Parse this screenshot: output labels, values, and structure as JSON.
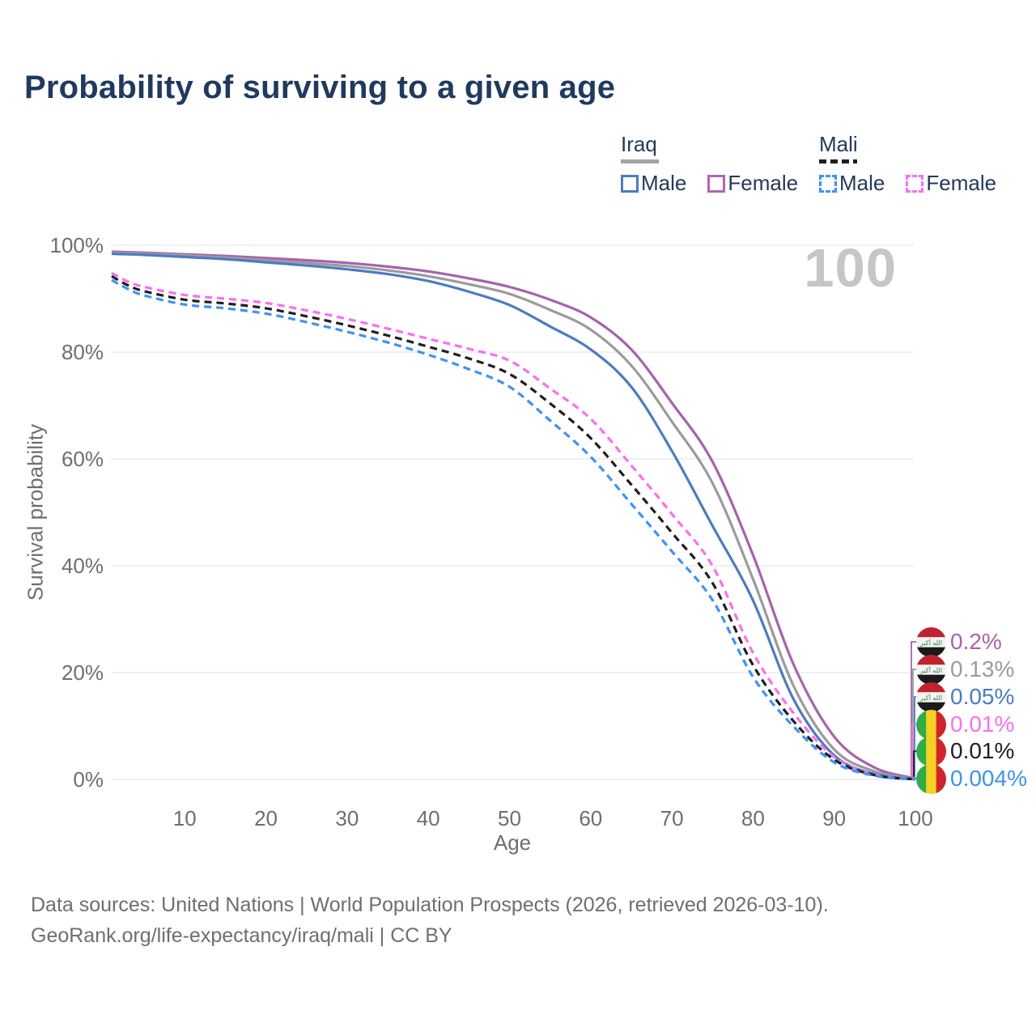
{
  "title": "Probability of surviving to a given age",
  "watermark_age": "100",
  "legend": {
    "iraq": {
      "label": "Iraq",
      "male": "Male",
      "female": "Female"
    },
    "mali": {
      "label": "Mali",
      "male": "Male",
      "female": "Female"
    }
  },
  "footer": {
    "line1": "Data sources: United Nations | World Population Prospects (2026, retrieved 2026-03-10).",
    "line2": "GeoRank.org/life-expectancy/iraq/mali | CC BY"
  },
  "colors": {
    "title_navy": "#1f3a5e",
    "legend_text": "#24395b",
    "axis_text": "#6e6e6e",
    "gridline": "#ebebeb",
    "watermark": "#c6c6c6",
    "iraq_male": "#4a7cc2",
    "iraq_female": "#a763ab",
    "iraq_both": "#9b9b9b",
    "mali_male": "#3d92fa",
    "mali_female": "#fb6ff0",
    "mali_both": "#1f1f1f"
  },
  "chart_data": {
    "type": "line",
    "title": "Probability of surviving to a given age",
    "xlabel": "Age",
    "ylabel": "Survival probability",
    "xlim": [
      1,
      100
    ],
    "ylim": [
      0,
      100
    ],
    "grid": "horizontal",
    "x_ticks": [
      10,
      20,
      30,
      40,
      50,
      60,
      70,
      80,
      90,
      100
    ],
    "y_ticks": [
      {
        "value": 0,
        "label": "0%"
      },
      {
        "value": 20,
        "label": "20%"
      },
      {
        "value": 40,
        "label": "40%"
      },
      {
        "value": 60,
        "label": "60%"
      },
      {
        "value": 80,
        "label": "80%"
      },
      {
        "value": 100,
        "label": "100%"
      }
    ],
    "x": [
      1,
      3,
      5,
      10,
      15,
      20,
      25,
      30,
      35,
      40,
      45,
      50,
      55,
      60,
      65,
      70,
      75,
      80,
      85,
      90,
      95,
      100
    ],
    "series": [
      {
        "id": "iraq-female",
        "name": "Iraq Female",
        "color": "#a763ab",
        "dashed": false,
        "flag": "iraq",
        "end_label": "0.2%",
        "values": [
          98.8,
          98.7,
          98.6,
          98.3,
          98.0,
          97.6,
          97.2,
          96.7,
          96.0,
          95.1,
          93.8,
          92.2,
          89.8,
          86.5,
          80.5,
          70.5,
          59.5,
          42.0,
          21.5,
          8.0,
          2.2,
          0.2
        ]
      },
      {
        "id": "iraq-both",
        "name": "Iraq Both sexes",
        "color": "#9b9b9b",
        "dashed": false,
        "flag": "iraq",
        "end_label": "0.13%",
        "values": [
          98.6,
          98.5,
          98.4,
          98.1,
          97.7,
          97.2,
          96.7,
          96.1,
          95.3,
          94.2,
          92.7,
          90.9,
          87.9,
          84.2,
          77.5,
          67.0,
          55.5,
          37.5,
          17.5,
          5.6,
          1.5,
          0.13
        ]
      },
      {
        "id": "iraq-male",
        "name": "Iraq Male",
        "color": "#4a7cc2",
        "dashed": false,
        "flag": "iraq",
        "end_label": "0.05%",
        "values": [
          98.4,
          98.3,
          98.2,
          97.8,
          97.4,
          96.8,
          96.2,
          95.5,
          94.6,
          93.3,
          91.3,
          88.8,
          84.8,
          80.5,
          73.5,
          61.5,
          47.5,
          33.5,
          15.0,
          4.5,
          1.0,
          0.05
        ]
      },
      {
        "id": "mali-female",
        "name": "Mali Female",
        "color": "#fb6ff0",
        "dashed": true,
        "flag": "mali",
        "end_label": "0.01%",
        "values": [
          94.8,
          93.2,
          92.2,
          90.7,
          90.0,
          89.2,
          87.8,
          86.2,
          84.4,
          82.5,
          80.6,
          78.4,
          73.2,
          67.5,
          58.8,
          49.7,
          40.0,
          23.7,
          12.4,
          4.2,
          0.9,
          0.01
        ]
      },
      {
        "id": "mali-both",
        "name": "Mali Both sexes",
        "color": "#1f1f1f",
        "dashed": true,
        "flag": "mali",
        "end_label": "0.01%",
        "values": [
          94.2,
          92.5,
          91.4,
          89.8,
          89.1,
          88.2,
          86.7,
          85.0,
          83.1,
          81.0,
          78.8,
          75.9,
          70.4,
          63.9,
          55.2,
          46.2,
          36.8,
          21.4,
          10.9,
          3.7,
          0.8,
          0.01
        ]
      },
      {
        "id": "mali-male",
        "name": "Mali Male",
        "color": "#3d92fa",
        "dashed": true,
        "flag": "mali",
        "end_label": "0.004%",
        "values": [
          93.5,
          91.8,
          90.6,
          88.9,
          88.2,
          87.2,
          85.6,
          83.8,
          81.8,
          79.5,
          76.8,
          73.5,
          67.2,
          60.4,
          51.6,
          42.7,
          33.6,
          19.2,
          9.9,
          3.2,
          0.7,
          0.004
        ]
      }
    ]
  }
}
